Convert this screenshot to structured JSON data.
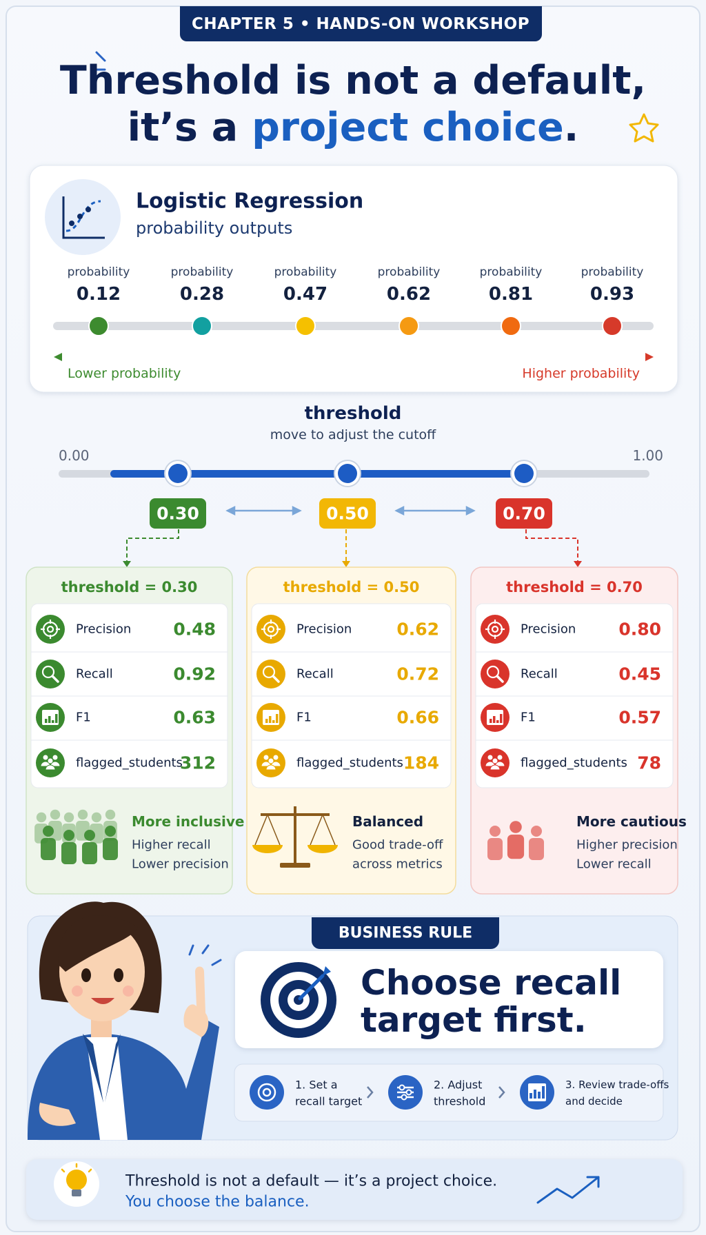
{
  "badge": "CHAPTER 5 • HANDS-ON WORKSHOP",
  "title": {
    "line1": "Threshold is not a default,",
    "line2_prefix": "it’s a",
    "line2_highlight": "project choice",
    "line2_suffix": "."
  },
  "model_card": {
    "title": "Logistic Regression",
    "subtitle": "probability outputs",
    "probabilities": [
      {
        "label": "probability",
        "value": 0.12
      },
      {
        "label": "probability",
        "value": 0.28
      },
      {
        "label": "probability",
        "value": 0.47
      },
      {
        "label": "probability",
        "value": 0.62
      },
      {
        "label": "probability",
        "value": 0.81
      },
      {
        "label": "probability",
        "value": 0.93
      }
    ],
    "axis_low": "Lower probability",
    "axis_high": "Higher probability"
  },
  "threshold_slider": {
    "title": "threshold",
    "subtitle": "move to adjust the cutoff",
    "min": "0.00",
    "max": "1.00",
    "thresholds": [
      "0.30",
      "0.50",
      "0.70"
    ]
  },
  "scenarios": [
    {
      "header": "threshold = 0.30",
      "metrics": [
        {
          "name": "Precision",
          "value": "0.48"
        },
        {
          "name": "Recall",
          "value": "0.92"
        },
        {
          "name": "F1",
          "value": "0.63"
        },
        {
          "name": "flagged_students",
          "value": 312
        }
      ],
      "summary_title": "More inclusive",
      "summary_lines": [
        "Higher recall",
        "Lower precision"
      ]
    },
    {
      "header": "threshold = 0.50",
      "metrics": [
        {
          "name": "Precision",
          "value": "0.62"
        },
        {
          "name": "Recall",
          "value": "0.72"
        },
        {
          "name": "F1",
          "value": "0.66"
        },
        {
          "name": "flagged_students",
          "value": 184
        }
      ],
      "summary_title": "Balanced",
      "summary_lines": [
        "Good trade-off",
        "across metrics"
      ]
    },
    {
      "header": "threshold = 0.70",
      "metrics": [
        {
          "name": "Precision",
          "value": "0.80"
        },
        {
          "name": "Recall",
          "value": "0.45"
        },
        {
          "name": "F1",
          "value": "0.57"
        },
        {
          "name": "flagged_students",
          "value": 78
        }
      ],
      "summary_title": "More cautious",
      "summary_lines": [
        "Higher precision",
        "Lower recall"
      ]
    }
  ],
  "business_rule": {
    "badge": "BUSINESS RULE",
    "rule_lines": [
      "Choose recall",
      "target first."
    ],
    "steps": [
      [
        "1. Set a",
        "recall target"
      ],
      [
        "2. Adjust",
        "threshold"
      ],
      [
        "3. Review trade-offs",
        "and decide"
      ]
    ]
  },
  "footer": {
    "line1": "Threshold is not a default — it’s a project choice.",
    "line2": "You choose the balance."
  }
}
